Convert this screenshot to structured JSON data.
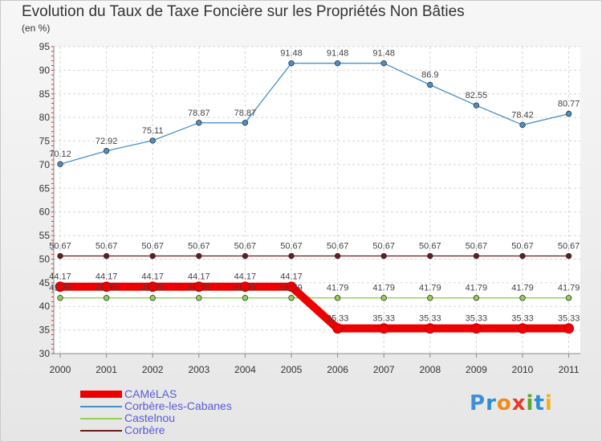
{
  "title": "Evolution du Taux de Taxe Foncière sur les Propriétés Non Bâties",
  "subtitle": "(en %)",
  "logo": {
    "letters": [
      "P",
      "r",
      "o",
      "x",
      "i",
      "t",
      "i"
    ],
    "colors": [
      "#3d8fd9",
      "#2b8fd1",
      "#f08a18",
      "#e53a2c",
      "#5aa82b",
      "#2b8fd1",
      "#f2b01e"
    ]
  },
  "chart_data": {
    "type": "line",
    "x": [
      "2000",
      "2001",
      "2002",
      "2003",
      "2004",
      "2005",
      "2006",
      "2007",
      "2008",
      "2009",
      "2010",
      "2011"
    ],
    "ylim": [
      30,
      95
    ],
    "yticks": [
      30,
      35,
      40,
      45,
      50,
      55,
      60,
      65,
      70,
      75,
      80,
      85,
      90,
      95
    ],
    "grid": true,
    "legend_position": "bottom-left",
    "series": [
      {
        "name": "Corbère",
        "color": "#6b1a1a",
        "values": [
          50.67,
          50.67,
          50.67,
          50.67,
          50.67,
          50.67,
          50.67,
          50.67,
          50.67,
          50.67,
          50.67,
          50.67
        ],
        "labels": [
          "50.67",
          "50.67",
          "50.67",
          "50.67",
          "50.67",
          "50.67",
          "50.67",
          "50.67",
          "50.67",
          "50.67",
          "50.67",
          "50.67"
        ]
      },
      {
        "name": "Castelnou",
        "color": "#92d050",
        "values": [
          41.79,
          41.79,
          41.79,
          41.79,
          41.79,
          41.79,
          41.79,
          41.79,
          41.79,
          41.79,
          41.79,
          41.79
        ],
        "labels": [
          "41.79",
          "41.79",
          "41.79",
          "41.79",
          "41.79",
          "41.79",
          "41.79",
          "41.79",
          "41.79",
          "41.79",
          "41.79",
          "41.79"
        ]
      },
      {
        "name": "Corbère-les-Cabanes",
        "color": "#4a90c8",
        "values": [
          70.12,
          72.92,
          75.11,
          78.87,
          78.87,
          91.48,
          91.48,
          91.48,
          86.9,
          82.55,
          78.42,
          80.77
        ],
        "labels": [
          "70.12",
          "72.92",
          "75.11",
          "78.87",
          "78.87",
          "91.48",
          "91.48",
          "91.48",
          "86.9",
          "82.55",
          "78.42",
          "80.77"
        ]
      },
      {
        "name": "CAMéLAS",
        "color": "#ee0000",
        "values": [
          44.17,
          44.17,
          44.17,
          44.17,
          44.17,
          44.17,
          35.33,
          35.33,
          35.33,
          35.33,
          35.33,
          35.33
        ],
        "labels": [
          "44.17",
          "44.17",
          "44.17",
          "44.17",
          "44.17",
          "44.17",
          "35.33",
          "35.33",
          "35.33",
          "35.33",
          "35.33",
          "35.33"
        ]
      }
    ],
    "legend_order": [
      "CAMéLAS",
      "Corbère-les-Cabanes",
      "Castelnou",
      "Corbère"
    ]
  }
}
